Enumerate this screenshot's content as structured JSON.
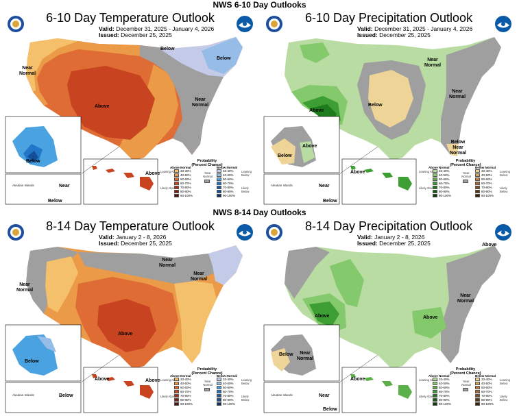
{
  "header_6_10": "NWS 6-10 Day Outlooks",
  "header_8_14": "NWS 8-14 Day Outlooks",
  "colors": {
    "above1": "#f4c06b",
    "above2": "#eb9a48",
    "above3": "#df6b35",
    "above4": "#c8431f",
    "below1": "#c3cbe8",
    "below2": "#95bde8",
    "below3": "#4aa3e0",
    "below4": "#2176c7",
    "below5": "#144e96",
    "near": "#9f9f9f",
    "wet1": "#b8dca2",
    "wet2": "#84c96b",
    "wet3": "#3c9e33",
    "wet4": "#1d7a1d",
    "dry1": "#efd497",
    "dry2": "#d8a462"
  },
  "legend_common": {
    "title": "Probability",
    "subtitle": "(Percent Chance)",
    "near_label": "Near Normal",
    "pct": [
      "33-40%",
      "40-50%",
      "50-60%",
      "60-70%",
      "70-80%",
      "80-90%",
      "90-100%"
    ]
  },
  "panels": [
    {
      "title": "6-10 Day Temperature Outlook",
      "valid_label": "Valid:",
      "valid": "December 31, 2025 - January 4, 2026",
      "issued_label": "Issued:",
      "issued": "December 25, 2025",
      "map_labels": [
        "Below",
        "Below",
        "Near Normal",
        "Above",
        "Near Normal",
        "Below",
        "Above",
        "Near",
        "Below"
      ],
      "inset_text": [
        "Aleutian Islands"
      ],
      "legend": {
        "left_head": "Above Normal",
        "right_head": "Below Normal",
        "left_side": [
          "Leaning Above",
          "Likely Above"
        ],
        "right_side": [
          "Leaning Below",
          "Likely Below"
        ]
      }
    },
    {
      "title": "6-10 Day Precipitation Outlook",
      "valid_label": "Valid:",
      "valid": "December 31, 2025 - January 4, 2026",
      "issued_label": "Issued:",
      "issued": "December 25, 2025",
      "map_labels": [
        "Above",
        "Below",
        "Near Normal",
        "Near Normal",
        "Above",
        "Below",
        "Below Near Normal",
        "Above",
        "Near",
        "Below"
      ],
      "inset_text": [
        "Aleutian Islands"
      ],
      "legend": {
        "left_head": "Above Normal",
        "right_head": "Below Normal",
        "left_side": [
          "Leaning Above",
          "Likely Above"
        ],
        "right_side": [
          "Leaning Below",
          "Likely Below"
        ]
      }
    },
    {
      "title": "8-14 Day Temperature Outlook",
      "valid_label": "Valid:",
      "valid": "January 2 - 8, 2026",
      "issued_label": "Issued:",
      "issued": "December 25, 2025",
      "map_labels": [
        "Near Normal",
        "Near Normal",
        "Near Normal",
        "Above",
        "Below",
        "Above",
        "Above",
        "Below"
      ],
      "inset_text": [
        "Aleutian Islands"
      ],
      "legend": {
        "left_head": "Above Normal",
        "right_head": "Below Normal",
        "left_side": [
          "Leaning Above",
          "Likely Above"
        ],
        "right_side": [
          "Leaning Below",
          "Likely Below"
        ]
      }
    },
    {
      "title": "8-14 Day Precipitation Outlook",
      "valid_label": "Valid:",
      "valid": "January 2 - 8, 2026",
      "issued_label": "Issued:",
      "issued": "December 25, 2025",
      "map_labels": [
        "Above",
        "Above",
        "Above",
        "Near Normal",
        "Below",
        "Near Normal",
        "Above",
        "Near",
        "Below"
      ],
      "inset_text": [
        "Aleutian Islands"
      ],
      "legend": {
        "left_head": "Above Normal",
        "right_head": "Below Normal",
        "left_side": [
          "Leaning Above",
          "Likely Above"
        ],
        "right_side": [
          "Leaning Below",
          "Likely Below"
        ]
      }
    }
  ]
}
